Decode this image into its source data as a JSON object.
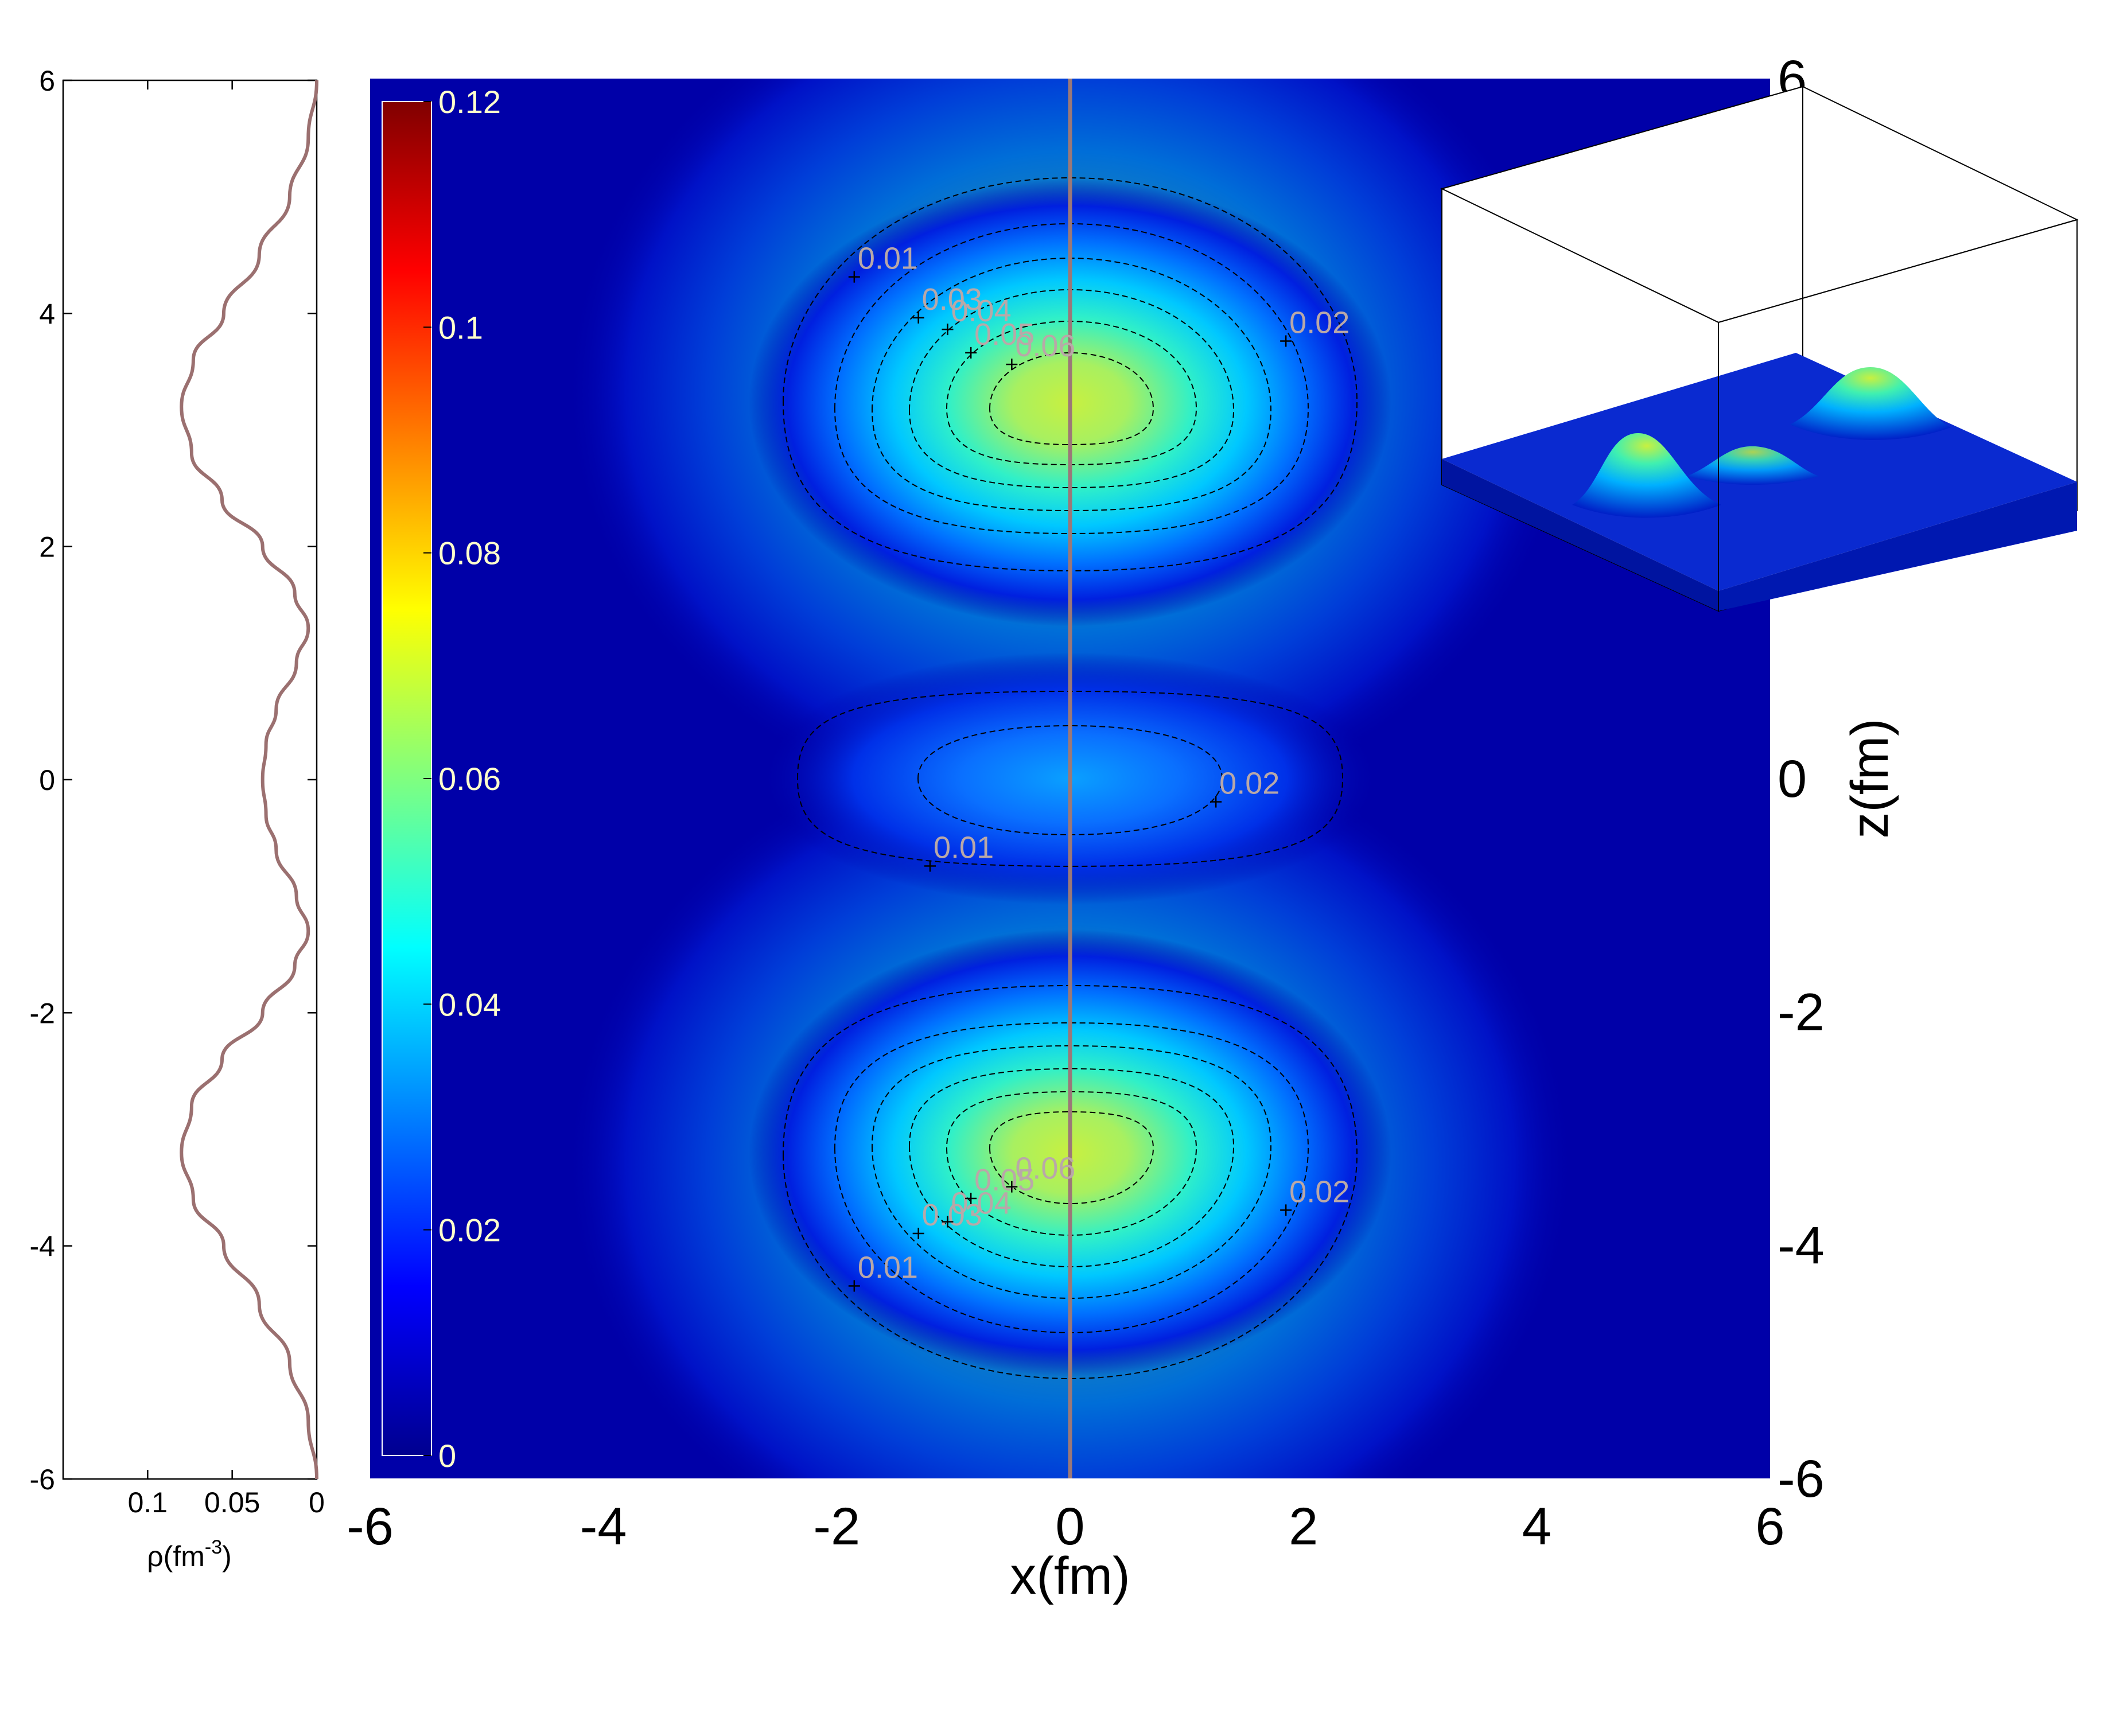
{
  "chart_data": [
    {
      "type": "line",
      "name": "profile",
      "xlabel": "ρ(fm⁻³)",
      "xlabel_parts": {
        "base": "ρ(fm",
        "sup": "-3",
        "tail": ")"
      },
      "x_ticks": [
        "0.1",
        "0.05",
        "0"
      ],
      "x_tick_values": [
        0.1,
        0.05,
        0
      ],
      "xlim": [
        0.15,
        0
      ],
      "y_ticks": [
        "6",
        "4",
        "2",
        "0",
        "-2",
        "-4",
        "-6"
      ],
      "y_tick_values": [
        6,
        4,
        2,
        0,
        -2,
        -4,
        -6
      ],
      "ylim": [
        -6,
        6
      ],
      "line_color": "#9b7070",
      "points": [
        [
          6.0,
          0.0
        ],
        [
          5.5,
          0.005
        ],
        [
          5.0,
          0.016
        ],
        [
          4.5,
          0.034
        ],
        [
          4.0,
          0.055
        ],
        [
          3.6,
          0.073
        ],
        [
          3.2,
          0.08
        ],
        [
          2.8,
          0.074
        ],
        [
          2.4,
          0.056
        ],
        [
          2.0,
          0.032
        ],
        [
          1.6,
          0.013
        ],
        [
          1.3,
          0.005
        ],
        [
          1.0,
          0.012
        ],
        [
          0.6,
          0.024
        ],
        [
          0.3,
          0.03
        ],
        [
          0.0,
          0.032
        ],
        [
          -0.3,
          0.03
        ],
        [
          -0.6,
          0.024
        ],
        [
          -1.0,
          0.012
        ],
        [
          -1.3,
          0.005
        ],
        [
          -1.6,
          0.013
        ],
        [
          -2.0,
          0.032
        ],
        [
          -2.4,
          0.056
        ],
        [
          -2.8,
          0.074
        ],
        [
          -3.2,
          0.08
        ],
        [
          -3.6,
          0.073
        ],
        [
          -4.0,
          0.055
        ],
        [
          -4.5,
          0.034
        ],
        [
          -5.0,
          0.016
        ],
        [
          -5.5,
          0.005
        ],
        [
          -6.0,
          0.0
        ]
      ]
    },
    {
      "type": "heatmap",
      "name": "density-map",
      "xlabel": "x(fm)",
      "ylabel": "z(fm)",
      "x_ticks": [
        "-6",
        "-4",
        "-2",
        "0",
        "2",
        "4",
        "6"
      ],
      "y_ticks": [
        "6",
        "0",
        "-2",
        "-4",
        "-6"
      ],
      "y_tick_values": [
        6,
        0,
        -2,
        -4,
        -6
      ],
      "xlim": [
        -6,
        6
      ],
      "ylim": [
        -6,
        6
      ],
      "colorbar_ticks": [
        "0.12",
        "0.1",
        "0.08",
        "0.06",
        "0.04",
        "0.02",
        "0"
      ],
      "colorbar_tick_values": [
        0.12,
        0.1,
        0.08,
        0.06,
        0.04,
        0.02,
        0
      ],
      "colorbar_range": [
        0,
        0.12
      ],
      "colormap": "jet",
      "peaks": [
        {
          "x": 0,
          "z": 3.2,
          "value": 0.078
        },
        {
          "x": 0,
          "z": 0,
          "value": 0.03
        },
        {
          "x": 0,
          "z": -3.2,
          "value": 0.078
        }
      ],
      "contour_levels": [
        0.01,
        0.02,
        0.03,
        0.04,
        0.05,
        0.06
      ],
      "contour_labels": [
        {
          "text": "0.01",
          "x": -1.85,
          "z": 4.3
        },
        {
          "text": "0.03",
          "x": -1.3,
          "z": 3.95
        },
        {
          "text": "0.04",
          "x": -1.05,
          "z": 3.85
        },
        {
          "text": "0.05",
          "x": -0.85,
          "z": 3.65
        },
        {
          "text": "0.06",
          "x": -0.5,
          "z": 3.55
        },
        {
          "text": "0.02",
          "x": 1.85,
          "z": 3.75
        },
        {
          "text": "0.02",
          "x": 1.25,
          "z": -0.2
        },
        {
          "text": "0.01",
          "x": -1.2,
          "z": -0.75
        },
        {
          "text": "0.01",
          "x": -1.85,
          "z": -4.35
        },
        {
          "text": "0.03",
          "x": -1.3,
          "z": -3.9
        },
        {
          "text": "0.04",
          "x": -1.05,
          "z": -3.8
        },
        {
          "text": "0.05",
          "x": -0.85,
          "z": -3.6
        },
        {
          "text": "0.06",
          "x": -0.5,
          "z": -3.5
        },
        {
          "text": "0.02",
          "x": 1.85,
          "z": -3.7
        }
      ],
      "label_color": "#b9a8a8"
    },
    {
      "type": "surface",
      "name": "surface-inset",
      "description_free": true
    }
  ]
}
